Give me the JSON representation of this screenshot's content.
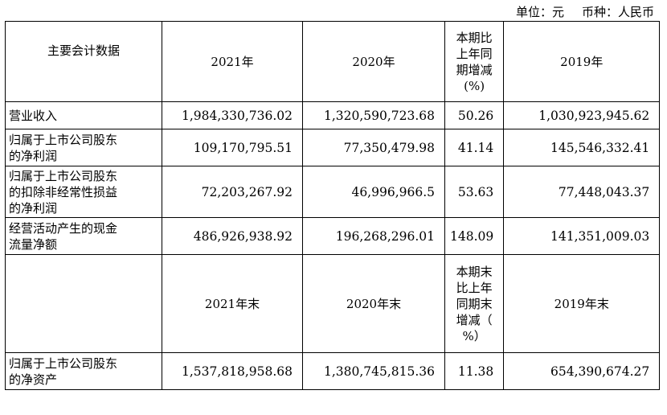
{
  "unit": {
    "unit_label": "单位：元",
    "currency_label": "币种：人民币"
  },
  "headers1": {
    "item": "主要会计数据",
    "y2021": "2021年",
    "y2020": "2020年",
    "change_lines": [
      "本期比",
      "上年同",
      "期增减",
      "(%)"
    ],
    "y2019": "2019年"
  },
  "rows1": [
    {
      "label_lines": [
        "营业收入"
      ],
      "v2021": "1,984,330,736.02",
      "v2020": "1,320,590,723.68",
      "chg": "50.26",
      "v2019": "1,030,923,945.62"
    },
    {
      "label_lines": [
        "归属于上市公司股东",
        "的净利润"
      ],
      "v2021": "109,170,795.51",
      "v2020": "77,350,479.98",
      "chg": "41.14",
      "v2019": "145,546,332.41"
    },
    {
      "label_lines": [
        "归属于上市公司股东",
        "的扣除非经常性损益",
        "的净利润"
      ],
      "v2021": "72,203,267.92",
      "v2020": "46,996,966.5",
      "chg": "53.63",
      "v2019": "77,448,043.37"
    },
    {
      "label_lines": [
        "经营活动产生的现金",
        "流量净额"
      ],
      "v2021": "486,926,938.92",
      "v2020": "196,268,296.01",
      "chg": "148.09",
      "v2019": "141,351,009.03"
    }
  ],
  "headers2": {
    "item": "",
    "y2021": "2021年末",
    "y2020": "2020年末",
    "change_lines": [
      "本期末",
      "比上年",
      "同期末",
      "增减（",
      "%）"
    ],
    "y2019": "2019年末"
  },
  "rows2": [
    {
      "label_lines": [
        "归属于上市公司股东",
        "的净资产"
      ],
      "v2021": "1,537,818,958.68",
      "v2020": "1,380,745,815.36",
      "chg": "11.38",
      "v2019": "654,390,674.27"
    }
  ]
}
